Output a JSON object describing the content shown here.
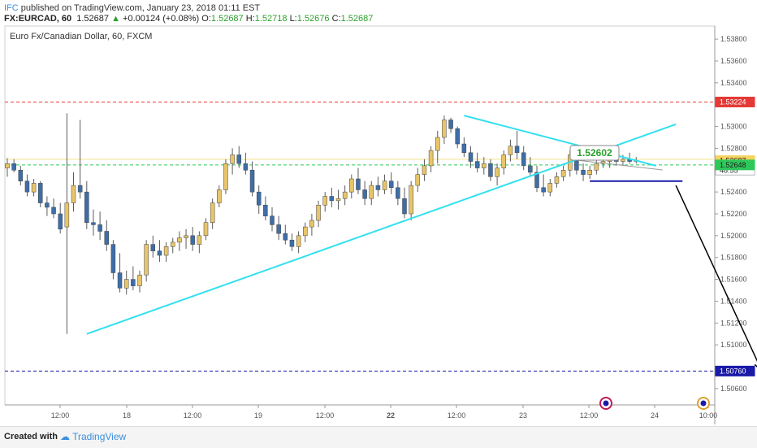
{
  "header": {
    "user": "IFC",
    "published": "published on TradingView.com, January 23, 2018 01:11 EST",
    "symbol": "FX:EURCAD, 60",
    "last": "1.52687",
    "change": "+0.00124 (+0.08%)",
    "o_label": "O:",
    "o_val": "1.52687",
    "h_label": "H:",
    "h_val": "1.52718",
    "l_label": "L:",
    "l_val": "1.52676",
    "c_label": "C:",
    "c_val": "1.52687"
  },
  "footer": {
    "created": "Created with",
    "brand": "TradingView"
  },
  "chart_data": {
    "type": "candlestick",
    "title": "Euro Fx/Canadian Dollar, 60, FXCM",
    "x_ticks": [
      "12:00",
      "18",
      "12:00",
      "19",
      "12:00",
      "22",
      "12:00",
      "23",
      "12:00",
      "24",
      "10:00"
    ],
    "y_ticks": [
      "1.53800",
      "1.53600",
      "1.53400",
      "1.53000",
      "1.52800",
      "1.52400",
      "1.52200",
      "1.52000",
      "1.51800",
      "1.51600",
      "1.51400",
      "1.51200",
      "1.51000",
      "1.50600"
    ],
    "ylim": [
      1.5045,
      1.5392
    ],
    "price_labels": [
      {
        "text": "1.53224",
        "value": 1.53224,
        "color": "#e53935"
      },
      {
        "text": "1.52687",
        "value": 1.52687,
        "color": "#f4d35e"
      },
      {
        "text": "48:55",
        "value": 1.526,
        "color": "#ffffff"
      },
      {
        "text": "1.52648",
        "value": 1.52648,
        "color": "#2ec85a"
      },
      {
        "text": "1.50760",
        "value": 1.5076,
        "color": "#1a1aa8"
      }
    ],
    "hlines": [
      {
        "value": 1.53224,
        "color": "#e53935",
        "style": "dashed"
      },
      {
        "value": 1.52648,
        "color": "#2ec85a",
        "style": "dashed"
      },
      {
        "value": 1.5076,
        "color": "#1a1aa8",
        "style": "dashed"
      },
      {
        "value": 1.527,
        "color": "#f4e28a",
        "style": "solid"
      }
    ],
    "annotation": {
      "text": "1.52602",
      "value": 1.52602
    },
    "candles": [
      [
        1.5262,
        1.5271,
        1.5254,
        1.5266
      ],
      [
        1.5266,
        1.527,
        1.5258,
        1.526
      ],
      [
        1.526,
        1.5264,
        1.5246,
        1.525
      ],
      [
        1.525,
        1.5256,
        1.5236,
        1.524
      ],
      [
        1.524,
        1.5252,
        1.5236,
        1.5248
      ],
      [
        1.5248,
        1.525,
        1.5226,
        1.523
      ],
      [
        1.523,
        1.5236,
        1.5218,
        1.5226
      ],
      [
        1.5226,
        1.5234,
        1.5216,
        1.522
      ],
      [
        1.522,
        1.523,
        1.5202,
        1.5206
      ],
      [
        1.5208,
        1.5312,
        1.511,
        1.523
      ],
      [
        1.523,
        1.5258,
        1.5222,
        1.5246
      ],
      [
        1.5246,
        1.5306,
        1.5234,
        1.524
      ],
      [
        1.524,
        1.525,
        1.5206,
        1.5212
      ],
      [
        1.5212,
        1.5224,
        1.52,
        1.521
      ],
      [
        1.521,
        1.5222,
        1.5196,
        1.5204
      ],
      [
        1.5204,
        1.5214,
        1.5186,
        1.5192
      ],
      [
        1.5192,
        1.5196,
        1.516,
        1.5166
      ],
      [
        1.5166,
        1.5184,
        1.5148,
        1.5152
      ],
      [
        1.5152,
        1.5168,
        1.5146,
        1.516
      ],
      [
        1.516,
        1.5172,
        1.515,
        1.5154
      ],
      [
        1.5154,
        1.5168,
        1.5148,
        1.5164
      ],
      [
        1.5164,
        1.5196,
        1.5158,
        1.5192
      ],
      [
        1.5192,
        1.52,
        1.518,
        1.5186
      ],
      [
        1.5186,
        1.5196,
        1.5176,
        1.5182
      ],
      [
        1.5182,
        1.5194,
        1.5176,
        1.519
      ],
      [
        1.519,
        1.5198,
        1.5184,
        1.5194
      ],
      [
        1.5194,
        1.5204,
        1.5186,
        1.5198
      ],
      [
        1.5198,
        1.5206,
        1.5188,
        1.52
      ],
      [
        1.52,
        1.5208,
        1.5186,
        1.5192
      ],
      [
        1.5192,
        1.5204,
        1.5184,
        1.52
      ],
      [
        1.52,
        1.5216,
        1.5196,
        1.5212
      ],
      [
        1.5212,
        1.5234,
        1.5206,
        1.523
      ],
      [
        1.523,
        1.5246,
        1.5226,
        1.5242
      ],
      [
        1.5242,
        1.527,
        1.5238,
        1.5266
      ],
      [
        1.5266,
        1.528,
        1.5256,
        1.5274
      ],
      [
        1.5274,
        1.5282,
        1.5262,
        1.5266
      ],
      [
        1.5266,
        1.5276,
        1.5256,
        1.526
      ],
      [
        1.526,
        1.5268,
        1.5236,
        1.524
      ],
      [
        1.524,
        1.5246,
        1.522,
        1.5228
      ],
      [
        1.5228,
        1.5236,
        1.5214,
        1.5218
      ],
      [
        1.5218,
        1.5226,
        1.5204,
        1.521
      ],
      [
        1.521,
        1.5218,
        1.5196,
        1.5202
      ],
      [
        1.5202,
        1.521,
        1.5192,
        1.5196
      ],
      [
        1.5196,
        1.5202,
        1.5186,
        1.519
      ],
      [
        1.519,
        1.5204,
        1.5184,
        1.52
      ],
      [
        1.52,
        1.5212,
        1.5194,
        1.5208
      ],
      [
        1.5208,
        1.522,
        1.52,
        1.5214
      ],
      [
        1.5214,
        1.5232,
        1.5208,
        1.5228
      ],
      [
        1.5228,
        1.524,
        1.5222,
        1.5236
      ],
      [
        1.5236,
        1.5244,
        1.5226,
        1.5232
      ],
      [
        1.5232,
        1.5242,
        1.5224,
        1.5234
      ],
      [
        1.5234,
        1.5246,
        1.5228,
        1.524
      ],
      [
        1.524,
        1.5256,
        1.5234,
        1.5252
      ],
      [
        1.5252,
        1.5262,
        1.5238,
        1.5242
      ],
      [
        1.5242,
        1.525,
        1.5228,
        1.5234
      ],
      [
        1.5234,
        1.525,
        1.5228,
        1.5246
      ],
      [
        1.5246,
        1.5254,
        1.5236,
        1.5242
      ],
      [
        1.5242,
        1.5256,
        1.5238,
        1.525
      ],
      [
        1.525,
        1.5258,
        1.5238,
        1.5244
      ],
      [
        1.5244,
        1.525,
        1.5228,
        1.5234
      ],
      [
        1.5234,
        1.5244,
        1.5216,
        1.522
      ],
      [
        1.522,
        1.525,
        1.5214,
        1.5246
      ],
      [
        1.5246,
        1.5262,
        1.524,
        1.5256
      ],
      [
        1.5256,
        1.527,
        1.525,
        1.5264
      ],
      [
        1.5264,
        1.5282,
        1.5258,
        1.5278
      ],
      [
        1.5278,
        1.5296,
        1.5266,
        1.529
      ],
      [
        1.529,
        1.531,
        1.5284,
        1.5306
      ],
      [
        1.5306,
        1.5308,
        1.5294,
        1.5298
      ],
      [
        1.5298,
        1.53,
        1.528,
        1.5284
      ],
      [
        1.5284,
        1.529,
        1.5272,
        1.5276
      ],
      [
        1.5276,
        1.5282,
        1.5262,
        1.5268
      ],
      [
        1.5268,
        1.5276,
        1.5258,
        1.5262
      ],
      [
        1.5262,
        1.5272,
        1.5256,
        1.5266
      ],
      [
        1.5266,
        1.527,
        1.525,
        1.5254
      ],
      [
        1.5254,
        1.5266,
        1.5246,
        1.5262
      ],
      [
        1.5262,
        1.5278,
        1.5256,
        1.5274
      ],
      [
        1.5274,
        1.5288,
        1.5268,
        1.5282
      ],
      [
        1.5282,
        1.5296,
        1.527,
        1.5276
      ],
      [
        1.5276,
        1.5282,
        1.526,
        1.5264
      ],
      [
        1.5264,
        1.5272,
        1.5254,
        1.5258
      ],
      [
        1.5258,
        1.5264,
        1.524,
        1.5244
      ],
      [
        1.5244,
        1.5256,
        1.5236,
        1.524
      ],
      [
        1.524,
        1.5252,
        1.5236,
        1.5248
      ],
      [
        1.5248,
        1.5258,
        1.5244,
        1.5254
      ],
      [
        1.5254,
        1.5264,
        1.525,
        1.526
      ],
      [
        1.526,
        1.5278,
        1.5254,
        1.5274
      ],
      [
        1.5274,
        1.5276,
        1.5256,
        1.526
      ],
      [
        1.526,
        1.5266,
        1.525,
        1.5256
      ],
      [
        1.5256,
        1.5264,
        1.5252,
        1.526
      ],
      [
        1.526,
        1.5272,
        1.5256,
        1.5266
      ],
      [
        1.5266,
        1.5274,
        1.5262,
        1.5268
      ],
      [
        1.5268,
        1.5276,
        1.5262,
        1.527
      ],
      [
        1.527,
        1.5278,
        1.5264,
        1.5268
      ],
      [
        1.5268,
        1.5274,
        1.5264,
        1.527
      ],
      [
        1.527,
        1.5276,
        1.5266,
        1.5268
      ],
      [
        1.5268,
        1.5272,
        1.5266,
        1.5269
      ]
    ],
    "trendlines": [
      {
        "name": "triangle-upper",
        "x": [
          69,
          98
        ],
        "y": [
          1.531,
          1.5264
        ]
      },
      {
        "name": "triangle-lower",
        "x": [
          12,
          101
        ],
        "y": [
          1.511,
          1.5302
        ]
      },
      {
        "name": "support-line",
        "x": [
          88,
          102
        ],
        "y": [
          1.525,
          1.525
        ]
      },
      {
        "name": "target-arrow",
        "x": [
          101,
          114
        ],
        "y": [
          1.5246,
          1.5076
        ]
      }
    ]
  }
}
